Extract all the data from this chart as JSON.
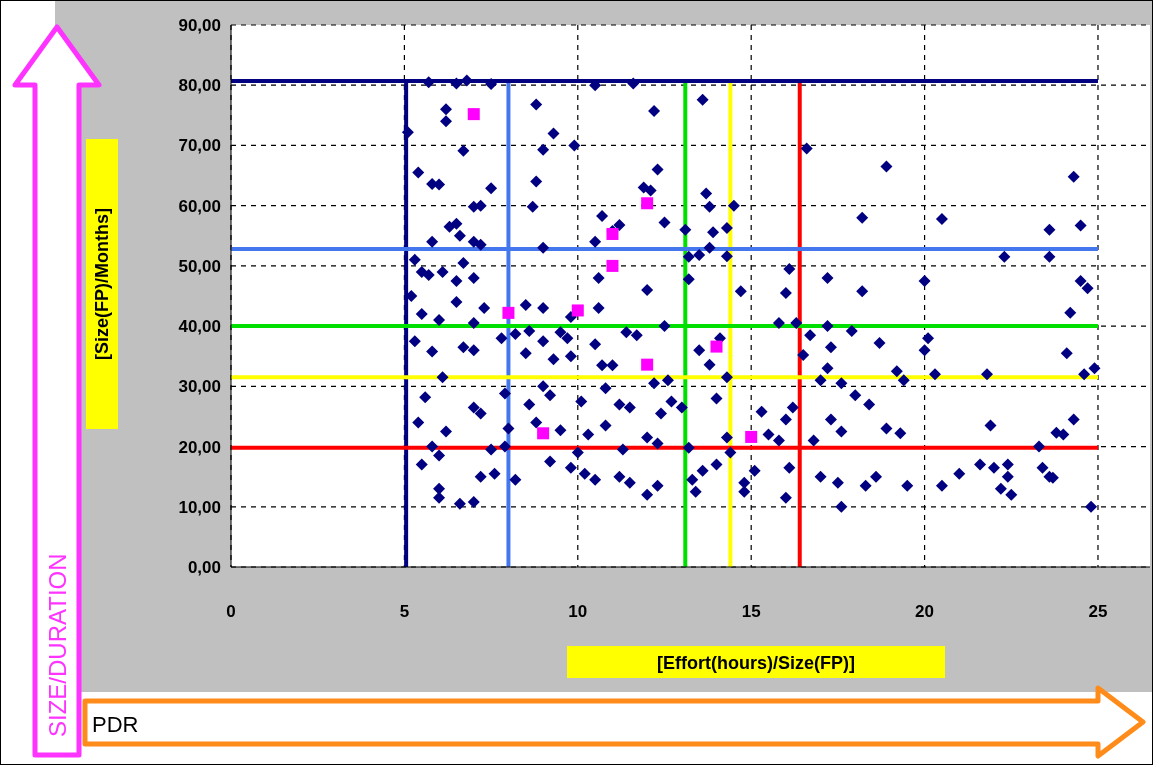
{
  "chart_data": {
    "type": "scatter",
    "xlabel": "[Effort(hours)/Size(FP)]",
    "ylabel": "[Size(FP)/Months]",
    "annotations": [
      "SIZE/DURATION",
      "PDR"
    ],
    "xlim": [
      0,
      26.5
    ],
    "xticks": [
      0,
      5,
      10,
      15,
      20,
      25
    ],
    "ylim": [
      0,
      90
    ],
    "yticks": [
      {
        "value": 0,
        "label": "0,00"
      },
      {
        "value": 10,
        "label": "10,00"
      },
      {
        "value": 20,
        "label": "20,00"
      },
      {
        "value": 30,
        "label": "30,00"
      },
      {
        "value": 40,
        "label": "40,00"
      },
      {
        "value": 50,
        "label": "50,00"
      },
      {
        "value": 60,
        "label": "60,00"
      },
      {
        "value": 70,
        "label": "70,00"
      },
      {
        "value": 80,
        "label": "80,00"
      },
      {
        "value": 90,
        "label": "90,00"
      }
    ],
    "grid": true,
    "ref_lines": [
      {
        "axis": "x",
        "value": 5.05,
        "color": "#000080"
      },
      {
        "axis": "x",
        "value": 8.0,
        "color": "#4477ee"
      },
      {
        "axis": "x",
        "value": 13.1,
        "color": "#00e000"
      },
      {
        "axis": "x",
        "value": 14.4,
        "color": "#ffff00"
      },
      {
        "axis": "x",
        "value": 16.4,
        "color": "#ff0000"
      },
      {
        "axis": "y",
        "value": 80.7,
        "color": "#000080"
      },
      {
        "axis": "y",
        "value": 52.8,
        "color": "#4477ee"
      },
      {
        "axis": "y",
        "value": 40.0,
        "color": "#00e000"
      },
      {
        "axis": "y",
        "value": 31.5,
        "color": "#ffff00"
      },
      {
        "axis": "y",
        "value": 19.8,
        "color": "#ff0000"
      }
    ],
    "series": [
      {
        "color": "#000080",
        "marker": "diamond",
        "x": [
          5.7,
          6.5,
          6.8,
          7.5,
          10.5,
          11.6,
          13.6,
          6.2,
          6.2,
          8.8,
          12.2,
          9.3,
          5.1,
          6.7,
          9.0,
          9.9,
          12.3,
          16.6,
          18.9,
          5.4,
          5.8,
          6.0,
          7.5,
          8.8,
          12.1,
          13.7,
          13.8,
          14.5,
          11.9,
          7.0,
          7.2,
          8.7,
          6.3,
          6.5,
          6.6,
          7.0,
          7.2,
          5.8,
          10.7,
          11.2,
          11.0,
          12.5,
          13.1,
          13.9,
          14.3,
          13.8,
          10.5,
          9.0,
          18.2,
          20.5,
          23.6,
          24.5,
          24.3,
          22.3,
          23.6,
          16.1,
          16.0,
          14.7,
          13.2,
          13.5,
          14.3,
          13.2,
          10.6,
          12.0,
          17.2,
          18.2,
          20.0,
          24.5,
          24.7,
          24.2,
          5.3,
          5.5,
          5.2,
          5.7,
          6.1,
          6.5,
          6.7,
          7.0,
          5.5,
          6.0,
          6.5,
          7.3,
          7.0,
          5.3,
          5.8,
          6.7,
          7.0,
          6.1,
          5.6,
          6.2,
          5.4,
          5.8,
          6.0,
          5.5,
          6.0,
          6.0,
          6.6,
          7.0,
          7.2,
          7.6,
          8.2,
          7.5,
          7.9,
          8.0,
          7.2,
          7.0,
          7.9,
          8.5,
          8.2,
          7.8,
          8.6,
          9.0,
          9.5,
          9.0,
          8.5,
          9.7,
          9.8,
          10.6,
          11.4,
          11.7,
          12.5,
          9.3,
          9.8,
          10.5,
          10.7,
          11.0,
          10.8,
          12.2,
          12.6,
          9.0,
          8.6,
          9.2,
          10.1,
          11.2,
          11.5,
          12.4,
          12.7,
          13.0,
          8.8,
          9.5,
          10.3,
          10.8,
          12.3,
          12.0,
          13.2,
          9.2,
          9.8,
          10.2,
          10.5,
          11.2,
          11.5,
          12.0,
          12.3,
          11.3,
          10.0,
          13.3,
          13.6,
          13.4,
          13.5,
          14.1,
          13.8,
          14.3,
          14.0,
          14.3,
          14.4,
          14.0,
          14.8,
          14.8,
          15.1,
          15.3,
          15.5,
          15.8,
          16.2,
          16.0,
          16.1,
          16.0,
          15.8,
          16.3,
          17.2,
          16.7,
          16.5,
          17.3,
          17.9,
          17.2,
          17.0,
          17.6,
          18.0,
          18.4,
          16.8,
          17.3,
          17.6,
          17.0,
          17.5,
          17.6,
          18.3,
          18.6,
          18.9,
          19.3,
          18.7,
          19.2,
          19.4,
          20.1,
          20.0,
          20.3,
          21.8,
          21.9,
          20.5,
          21.0,
          21.6,
          22.0,
          22.4,
          22.2,
          22.5,
          22.4,
          23.4,
          23.6,
          23.3,
          23.8,
          23.7,
          24.1,
          24.6,
          24.9,
          24.8,
          24.3,
          24.0,
          19.5
        ],
        "values": [
          80.5,
          80.3,
          80.8,
          80.2,
          80.0,
          80.3,
          77.6,
          76.0,
          74.0,
          76.8,
          75.7,
          72.0,
          72.2,
          69.1,
          69.3,
          70.0,
          66.0,
          69.5,
          66.5,
          65.5,
          63.6,
          63.5,
          62.9,
          64.0,
          62.5,
          62.0,
          59.8,
          60.0,
          63.0,
          59.8,
          60.0,
          59.8,
          56.5,
          57.0,
          55.0,
          54.0,
          53.5,
          54.0,
          58.3,
          56.8,
          55.8,
          57.2,
          56.0,
          55.6,
          56.3,
          53.0,
          54.0,
          53.0,
          58.0,
          57.8,
          56.0,
          56.7,
          64.8,
          51.5,
          51.5,
          49.5,
          45.5,
          45.8,
          51.5,
          51.8,
          51.6,
          47.8,
          48.0,
          46.0,
          48.0,
          45.8,
          47.5,
          47.5,
          46.3,
          42.2,
          51.0,
          49.0,
          45.0,
          48.5,
          49.0,
          47.5,
          50.5,
          48.0,
          42.0,
          41.0,
          44.0,
          43.0,
          40.5,
          37.5,
          35.8,
          36.5,
          36.0,
          31.5,
          28.2,
          22.5,
          24.0,
          20.0,
          18.5,
          17.0,
          13.0,
          11.5,
          10.5,
          10.8,
          15.0,
          15.5,
          14.5,
          19.5,
          20.0,
          23.0,
          25.5,
          26.5,
          28.8,
          35.5,
          38.7,
          38.0,
          39.2,
          37.5,
          39.0,
          43.0,
          43.5,
          38.0,
          41.5,
          43.0,
          39.0,
          38.5,
          40.0,
          34.5,
          35.0,
          37.0,
          33.5,
          33.5,
          29.7,
          30.5,
          31.0,
          30.0,
          27.0,
          28.5,
          27.5,
          27.0,
          26.5,
          25.5,
          27.5,
          26.5,
          24.0,
          22.7,
          22.0,
          23.5,
          20.5,
          21.5,
          19.8,
          17.5,
          16.5,
          15.5,
          14.5,
          15.0,
          14.0,
          12.0,
          13.5,
          19.5,
          19.0,
          14.5,
          16.0,
          12.5,
          36.0,
          38.0,
          33.6,
          31.5,
          28.0,
          21.5,
          19.0,
          17.0,
          14.0,
          12.5,
          16.0,
          25.8,
          22.0,
          21.0,
          26.5,
          24.5,
          16.5,
          11.5,
          40.5,
          40.5,
          40.0,
          38.5,
          35.2,
          36.5,
          39.2,
          33.0,
          31.0,
          30.5,
          28.5,
          27.0,
          21.0,
          24.5,
          22.5,
          15.0,
          14.0,
          10.0,
          13.5,
          15.0,
          23.0,
          22.2,
          37.2,
          32.5,
          31.0,
          38.0,
          36.0,
          32.0,
          32.0,
          23.5,
          13.5,
          15.5,
          17.0,
          16.5,
          17.0,
          13.0,
          12.0,
          15.0,
          16.5,
          15.0,
          20.0,
          22.3,
          14.8,
          35.5,
          32.0,
          33.0,
          10.0,
          24.5,
          22.0,
          13.5
        ]
      },
      {
        "color": "#ff00ff",
        "marker": "square",
        "x": [
          7.0,
          12.0,
          11.0,
          11.0,
          8.0,
          10.0,
          12.0,
          14.0,
          9.0,
          15.0
        ],
        "values": [
          75.2,
          60.4,
          55.3,
          50.0,
          42.2,
          42.6,
          33.6,
          36.6,
          22.2,
          21.6
        ]
      }
    ]
  }
}
